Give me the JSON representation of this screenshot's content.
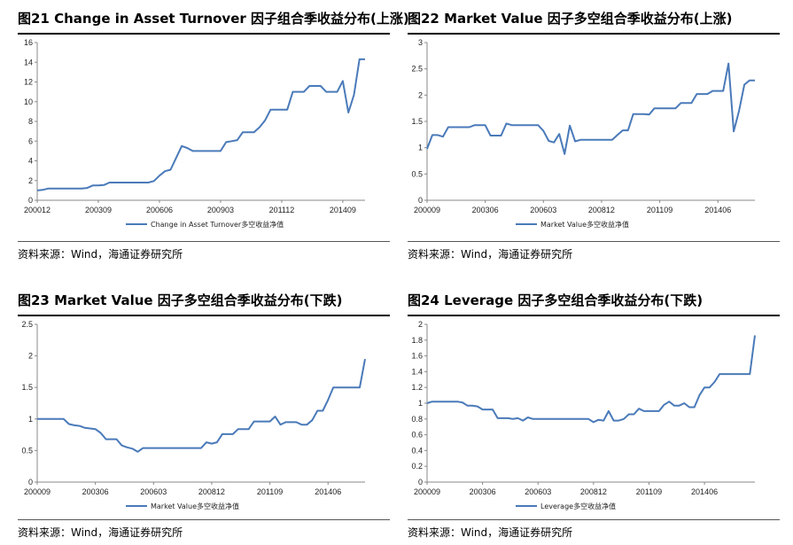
{
  "source_text": "资料来源：Wind，海通证券研究所",
  "charts": [
    {
      "id": "chart21",
      "title": "图21 Change in Asset Turnover 因子组合季收益分布(上涨)",
      "legend": "Change in Asset Turnover多空收益净值",
      "line_color": "#4a7ab9",
      "chart_data": {
        "type": "line",
        "title": "图21 Change in Asset Turnover 因子组合季收益分布(上涨)",
        "xlabel": "",
        "ylabel": "",
        "ylim": [
          0,
          16
        ],
        "yticks": [
          0,
          2,
          4,
          6,
          8,
          10,
          12,
          14,
          16
        ],
        "xticks": [
          "200012",
          "200309",
          "200606",
          "200903",
          "201112",
          "201409"
        ],
        "xtick_idx": [
          0,
          11,
          22,
          33,
          44,
          55
        ],
        "series": [
          {
            "name": "Change in Asset Turnover多空收益净值",
            "values": [
              1.0,
              1.05,
              1.2,
              1.2,
              1.2,
              1.2,
              1.2,
              1.2,
              1.2,
              1.25,
              1.5,
              1.5,
              1.55,
              1.8,
              1.8,
              1.8,
              1.8,
              1.8,
              1.8,
              1.8,
              1.8,
              1.95,
              2.5,
              2.95,
              3.1,
              4.3,
              5.5,
              5.3,
              5.0,
              5.0,
              5.0,
              5.0,
              5.0,
              5.0,
              5.9,
              6.0,
              6.1,
              6.9,
              6.9,
              6.9,
              7.4,
              8.1,
              9.2,
              9.2,
              9.2,
              9.2,
              11.0,
              11.0,
              11.0,
              11.6,
              11.6,
              11.6,
              11.0,
              11.0,
              11.0,
              12.1,
              8.9,
              10.7,
              14.3,
              14.3
            ]
          }
        ]
      }
    },
    {
      "id": "chart22",
      "title": "图22 Market Value 因子多空组合季收益分布(上涨)",
      "legend": "Market Value多空收益净值",
      "line_color": "#4a7ab9",
      "chart_data": {
        "type": "line",
        "title": "图22 Market Value 因子多空组合季收益分布(上涨)",
        "xlabel": "",
        "ylabel": "",
        "ylim": [
          0,
          3
        ],
        "yticks": [
          0,
          0.5,
          1,
          1.5,
          2,
          2.5,
          3
        ],
        "xticks": [
          "200009",
          "200306",
          "200603",
          "200812",
          "201109",
          "201406"
        ],
        "xtick_idx": [
          0,
          11,
          22,
          33,
          44,
          55
        ],
        "series": [
          {
            "name": "Market Value多空收益净值",
            "values": [
              0.98,
              1.24,
              1.24,
              1.21,
              1.39,
              1.39,
              1.39,
              1.39,
              1.39,
              1.43,
              1.43,
              1.43,
              1.23,
              1.23,
              1.23,
              1.46,
              1.43,
              1.43,
              1.43,
              1.43,
              1.43,
              1.43,
              1.32,
              1.13,
              1.1,
              1.26,
              0.88,
              1.42,
              1.12,
              1.15,
              1.15,
              1.15,
              1.15,
              1.15,
              1.15,
              1.15,
              1.24,
              1.33,
              1.33,
              1.64,
              1.64,
              1.64,
              1.63,
              1.75,
              1.75,
              1.75,
              1.75,
              1.75,
              1.85,
              1.85,
              1.85,
              2.02,
              2.02,
              2.02,
              2.08,
              2.08,
              2.08,
              2.6,
              1.31,
              1.7,
              2.2,
              2.28,
              2.28
            ]
          }
        ]
      }
    },
    {
      "id": "chart23",
      "title": "图23 Market Value 因子多空组合季收益分布(下跌)",
      "legend": "Market Value多空收益净值",
      "line_color": "#4a7ab9",
      "chart_data": {
        "type": "line",
        "title": "图23 Market Value 因子多空组合季收益分布(下跌)",
        "xlabel": "",
        "ylabel": "",
        "ylim": [
          0,
          2.5
        ],
        "yticks": [
          0,
          0.5,
          1,
          1.5,
          2,
          2.5
        ],
        "xticks": [
          "200009",
          "200306",
          "200603",
          "200812",
          "201109",
          "201406"
        ],
        "xtick_idx": [
          0,
          11,
          22,
          33,
          44,
          55
        ],
        "series": [
          {
            "name": "Market Value多空收益净值",
            "values": [
              1.0,
              1.0,
              1.0,
              1.0,
              1.0,
              1.0,
              0.92,
              0.9,
              0.89,
              0.86,
              0.85,
              0.84,
              0.78,
              0.68,
              0.68,
              0.68,
              0.58,
              0.55,
              0.53,
              0.48,
              0.54,
              0.54,
              0.54,
              0.54,
              0.54,
              0.54,
              0.54,
              0.54,
              0.54,
              0.54,
              0.54,
              0.54,
              0.63,
              0.61,
              0.63,
              0.76,
              0.76,
              0.76,
              0.84,
              0.84,
              0.84,
              0.96,
              0.96,
              0.96,
              0.96,
              1.04,
              0.91,
              0.95,
              0.95,
              0.95,
              0.91,
              0.91,
              0.98,
              1.13,
              1.13,
              1.3,
              1.5,
              1.5,
              1.5,
              1.5,
              1.5,
              1.5,
              1.95
            ]
          }
        ]
      }
    },
    {
      "id": "chart24",
      "title": "图24 Leverage 因子多空组合季收益分布(下跌)",
      "legend": "Leverage多空收益净值",
      "line_color": "#4a7ab9",
      "chart_data": {
        "type": "line",
        "title": "图24 Leverage 因子多空组合季收益分布(下跌)",
        "xlabel": "",
        "ylabel": "",
        "ylim": [
          0,
          2
        ],
        "yticks": [
          0,
          0.2,
          0.4,
          0.6,
          0.8,
          1,
          1.2,
          1.4,
          1.6,
          1.8,
          2
        ],
        "xticks": [
          "200009",
          "200306",
          "200603",
          "200812",
          "201109",
          "201406"
        ],
        "xtick_idx": [
          0,
          11,
          22,
          33,
          44,
          55
        ],
        "series": [
          {
            "name": "Leverage多空收益净值",
            "values": [
              1.0,
              1.02,
              1.02,
              1.02,
              1.02,
              1.02,
              1.02,
              1.01,
              0.97,
              0.97,
              0.96,
              0.92,
              0.92,
              0.92,
              0.81,
              0.81,
              0.81,
              0.8,
              0.81,
              0.78,
              0.82,
              0.8,
              0.8,
              0.8,
              0.8,
              0.8,
              0.8,
              0.8,
              0.8,
              0.8,
              0.8,
              0.8,
              0.8,
              0.76,
              0.79,
              0.78,
              0.9,
              0.78,
              0.78,
              0.8,
              0.86,
              0.86,
              0.93,
              0.9,
              0.9,
              0.9,
              0.9,
              0.98,
              1.02,
              0.97,
              0.97,
              1.0,
              0.95,
              0.95,
              1.1,
              1.2,
              1.2,
              1.27,
              1.37,
              1.37,
              1.37,
              1.37,
              1.37,
              1.37,
              1.37,
              1.86
            ]
          }
        ]
      }
    }
  ]
}
